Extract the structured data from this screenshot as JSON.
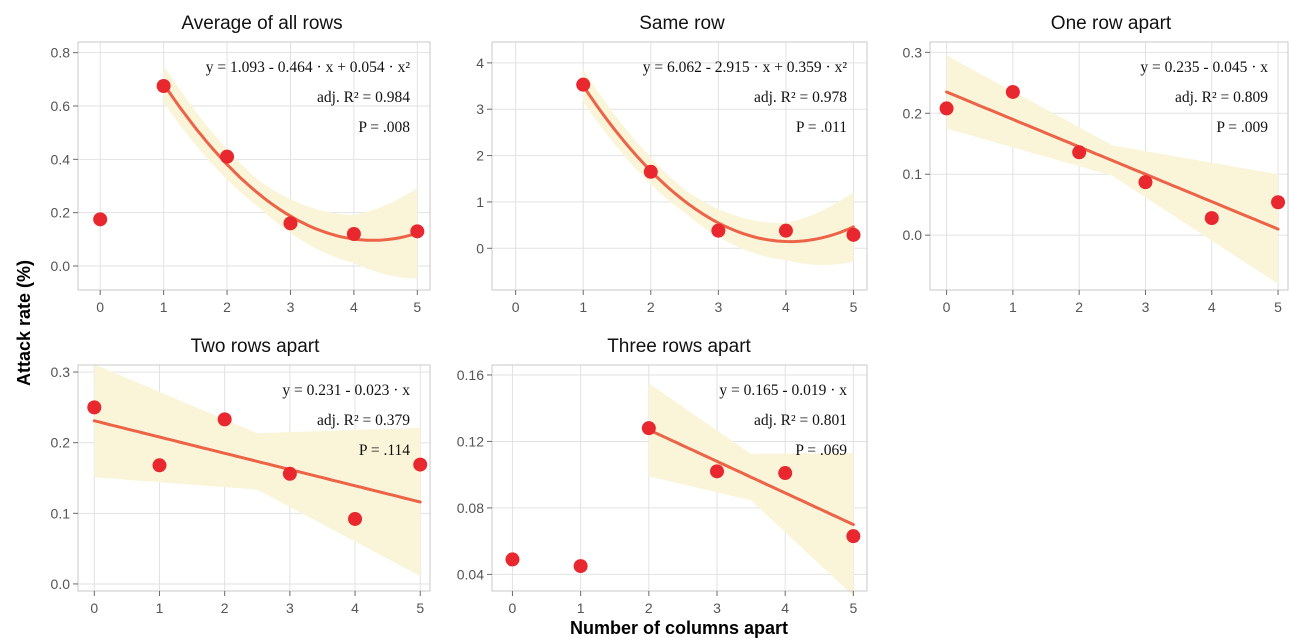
{
  "colors": {
    "point": "#e8272f",
    "fit_line": "#ec6347",
    "confidence_band": "#faf5d9",
    "grid": "#e2e2e2",
    "panel_border": "#c9c9c9"
  },
  "figure": {
    "ylabel": "Attack rate (%)",
    "xlabel": "Number of columns apart"
  },
  "chart_data": [
    {
      "type": "scatter",
      "title": "Average of all rows",
      "x": [
        0,
        1,
        2,
        3,
        4,
        5
      ],
      "y": [
        0.175,
        0.675,
        0.41,
        0.16,
        0.12,
        0.13
      ],
      "xlim": [
        -0.35,
        5.2
      ],
      "ylim": [
        -0.09,
        0.84
      ],
      "xticks": [
        "0",
        "1",
        "2",
        "3",
        "4",
        "5"
      ],
      "yticks": [
        "0.0",
        "0.2",
        "0.4",
        "0.6",
        "0.8"
      ],
      "ytick_values": [
        0,
        0.2,
        0.4,
        0.6,
        0.8
      ],
      "fit": {
        "kind": "quadratic",
        "coef": [
          1.093,
          -0.464,
          0.054
        ],
        "x_range": [
          1,
          5
        ],
        "band": [
          [
            1,
            0.07
          ],
          [
            2.5,
            0.05
          ],
          [
            4,
            0.09
          ],
          [
            5,
            0.17
          ]
        ]
      },
      "equation": {
        "line1": "y = 1.093 - 0.464 · x + 0.054 · x²",
        "line2": "adj. R² = 0.984",
        "line3": "P = .008"
      },
      "grid": true
    },
    {
      "type": "scatter",
      "title": "Same row",
      "x": [
        1,
        2,
        3,
        4,
        5
      ],
      "y": [
        3.53,
        1.65,
        0.38,
        0.38,
        0.29
      ],
      "xlim": [
        -0.35,
        5.2
      ],
      "ylim": [
        -0.9,
        4.45
      ],
      "xticks": [
        "0",
        "1",
        "2",
        "3",
        "4",
        "5"
      ],
      "yticks": [
        "0",
        "1",
        "2",
        "3",
        "4"
      ],
      "ytick_values": [
        0,
        1,
        2,
        3,
        4
      ],
      "fit": {
        "kind": "quadratic",
        "coef": [
          6.062,
          -2.915,
          0.359
        ],
        "x_range": [
          1,
          5
        ],
        "band": [
          [
            1,
            0.35
          ],
          [
            2.5,
            0.25
          ],
          [
            4,
            0.4
          ],
          [
            5,
            0.75
          ]
        ]
      },
      "equation": {
        "line1": "y = 6.062 - 2.915 · x + 0.359 · x²",
        "line2": "adj. R² = 0.978",
        "line3": "P = .011"
      },
      "grid": true
    },
    {
      "type": "scatter",
      "title": "One row apart",
      "x": [
        0,
        1,
        2,
        3,
        4,
        5
      ],
      "y": [
        0.208,
        0.235,
        0.136,
        0.087,
        0.028,
        0.054
      ],
      "xlim": [
        -0.25,
        5.15
      ],
      "ylim": [
        -0.09,
        0.317
      ],
      "xticks": [
        "0",
        "1",
        "2",
        "3",
        "4",
        "5"
      ],
      "yticks": [
        "0.0",
        "0.1",
        "0.2",
        "0.3"
      ],
      "ytick_values": [
        0,
        0.1,
        0.2,
        0.3
      ],
      "fit": {
        "kind": "linear",
        "coef": [
          0.235,
          -0.045
        ],
        "x_range": [
          0,
          5
        ],
        "band": [
          [
            0,
            0.06
          ],
          [
            2.5,
            0.025
          ],
          [
            5,
            0.09
          ]
        ]
      },
      "equation": {
        "line1": "y = 0.235 - 0.045 · x",
        "line2": "adj. R² = 0.809",
        "line3": "P = .009"
      },
      "grid": true
    },
    {
      "type": "scatter",
      "title": "Two rows apart",
      "x": [
        0,
        1,
        2,
        3,
        4,
        5
      ],
      "y": [
        0.25,
        0.168,
        0.233,
        0.156,
        0.092,
        0.169
      ],
      "xlim": [
        -0.25,
        5.15
      ],
      "ylim": [
        -0.01,
        0.31
      ],
      "xticks": [
        "0",
        "1",
        "2",
        "3",
        "4",
        "5"
      ],
      "yticks": [
        "0.0",
        "0.1",
        "0.2",
        "0.3"
      ],
      "ytick_values": [
        0,
        0.1,
        0.2,
        0.3
      ],
      "fit": {
        "kind": "linear",
        "coef": [
          0.231,
          -0.023
        ],
        "x_range": [
          0,
          5
        ],
        "band": [
          [
            0,
            0.08
          ],
          [
            2.5,
            0.04
          ],
          [
            5,
            0.105
          ]
        ]
      },
      "equation": {
        "line1": "y = 0.231 - 0.023 · x",
        "line2": "adj. R² = 0.379",
        "line3": "P = .114"
      },
      "grid": true
    },
    {
      "type": "scatter",
      "title": "Three rows apart",
      "x": [
        0,
        1,
        2,
        3,
        4,
        5
      ],
      "y": [
        0.049,
        0.045,
        0.128,
        0.102,
        0.101,
        0.063
      ],
      "xlim": [
        -0.3,
        5.2
      ],
      "ylim": [
        0.03,
        0.166
      ],
      "xticks": [
        "0",
        "1",
        "2",
        "3",
        "4",
        "5"
      ],
      "yticks": [
        "0.04",
        "0.08",
        "0.12",
        "0.16"
      ],
      "ytick_values": [
        0.04,
        0.08,
        0.12,
        0.16
      ],
      "fit": {
        "kind": "linear",
        "coef": [
          0.165,
          -0.019
        ],
        "x_range": [
          2,
          5
        ],
        "band": [
          [
            2,
            0.028
          ],
          [
            3.5,
            0.014
          ],
          [
            5,
            0.043
          ]
        ]
      },
      "equation": {
        "line1": "y = 0.165 - 0.019 · x",
        "line2": "adj. R² = 0.801",
        "line3": "P = .069"
      },
      "grid": true
    }
  ]
}
